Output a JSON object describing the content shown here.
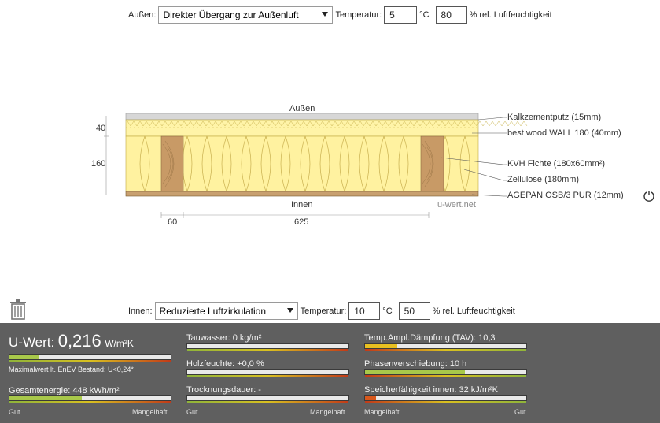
{
  "outside": {
    "label": "Außen:",
    "transition": "Direkter Übergang zur Außenluft",
    "temp_label": "Temperatur:",
    "temp_value": "5",
    "temp_unit": "°C",
    "humidity_value": "80",
    "humidity_unit": "% rel. Luftfeuchtigkeit"
  },
  "inside": {
    "label": "Innen:",
    "transition": "Reduzierte Luftzirkulation",
    "temp_label": "Temperatur:",
    "temp_value": "10",
    "temp_unit": "°C",
    "humidity_value": "50",
    "humidity_unit": "% rel. Luftfeuchtigkeit"
  },
  "diagram": {
    "outside_label": "Außen",
    "inside_label": "Innen",
    "watermark": "u-wert.net",
    "dim_left_top": "40",
    "dim_left_main": "160",
    "dim_bottom_a": "60",
    "dim_bottom_b": "625",
    "layers": [
      "Kalkzementputz (15mm)",
      "best wood WALL 180 (40mm)",
      "KVH Fichte (180x60mm²)",
      "Zellulose (180mm)",
      "AGEPAN OSB/3 PUR (12mm)"
    ]
  },
  "results": {
    "uwert_label": "U-Wert:",
    "uwert_value": "0,216",
    "uwert_unit": "W/m²K",
    "uwert_note": "Maximalwert lt. EnEV Bestand: U<0,24*",
    "uwert_fraction": 0.18,
    "gesamt_label": "Gesamtenergie: 448 kWh/m²",
    "gesamt_fraction": 0.45,
    "tauwasser_label": "Tauwasser: 0 kg/m²",
    "tauwasser_fraction": 0.0,
    "holz_label": "Holzfeuchte: +0,0 %",
    "holz_fraction": 0.0,
    "trocknung_label": "Trocknungsdauer: -",
    "trocknung_fraction": 0.0,
    "tav_label": "Temp.Ampl.Dämpfung (TAV): 10,3",
    "tav_fraction": 0.2,
    "phase_label": "Phasenverschiebung: 10 h",
    "phase_fraction": 0.62,
    "speicher_label": "Speicherfähigkeit innen: 32 kJ/m²K",
    "speicher_fraction": 0.07,
    "scale_good": "Gut",
    "scale_bad": "Mangelhaft"
  },
  "colors": {
    "good_bar": "#a8c84a",
    "mid_bar": "#e8c020",
    "bad_bar": "#d9581c",
    "insulation": "#fff2a0",
    "wood": "#c89a66"
  }
}
